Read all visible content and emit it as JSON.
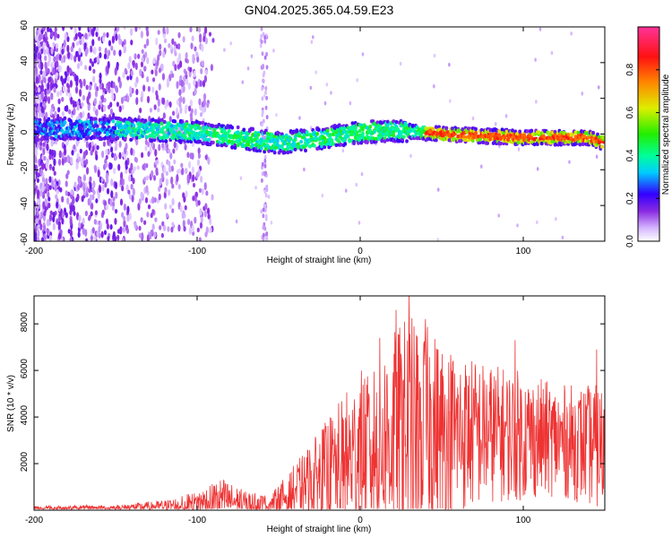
{
  "title": "GN04.2025.365.04.59.E23",
  "chart_data": [
    {
      "type": "heatmap",
      "name": "spectrogram",
      "xlabel": "Height of straight line (km)",
      "ylabel": "Frequency (Hz)",
      "xlim": [
        -200,
        150
      ],
      "ylim": [
        -60,
        60
      ],
      "xticks": [
        -200,
        -100,
        0,
        100
      ],
      "xtick_labels": [
        "-200",
        "-100",
        "0",
        "100"
      ],
      "yticks": [
        -60,
        -40,
        -20,
        0,
        20,
        40,
        60
      ],
      "ytick_labels": [
        "-60",
        "-40",
        "-20",
        "0",
        "20",
        "40",
        "60"
      ],
      "colorbar": {
        "label": "Normalized spectral amplitude",
        "range": [
          0,
          1
        ],
        "ticks": [
          0.0,
          0.2,
          0.4,
          0.6,
          0.8
        ],
        "tick_labels": [
          "0.0",
          "0.2",
          "0.4",
          "0.6",
          "0.8"
        ]
      },
      "ridge_center_hz": [
        {
          "x": -200,
          "f": 3
        },
        {
          "x": -150,
          "f": 3
        },
        {
          "x": -100,
          "f": 1
        },
        {
          "x": -50,
          "f": -5
        },
        {
          "x": -20,
          "f": -2
        },
        {
          "x": 0,
          "f": 1
        },
        {
          "x": 20,
          "f": 2
        },
        {
          "x": 50,
          "f": 0
        },
        {
          "x": 100,
          "f": -2
        },
        {
          "x": 140,
          "f": -2
        },
        {
          "x": 150,
          "f": -5
        }
      ]
    },
    {
      "type": "line",
      "name": "snr",
      "xlabel": "Height of straight line (km)",
      "ylabel": "SNR (10 * v/v)",
      "xlim": [
        -200,
        150
      ],
      "ylim": [
        0,
        9200
      ],
      "xticks": [
        -200,
        -100,
        0,
        100
      ],
      "xtick_labels": [
        "-200",
        "-100",
        "0",
        "100"
      ],
      "yticks": [
        2000,
        4000,
        6000,
        8000
      ],
      "ytick_labels": [
        "2000",
        "4000",
        "6000",
        "8000"
      ],
      "color": "#ee3333",
      "envelope": [
        {
          "x": -200,
          "base": 80,
          "amp": 120
        },
        {
          "x": -150,
          "base": 100,
          "amp": 120
        },
        {
          "x": -120,
          "base": 180,
          "amp": 250
        },
        {
          "x": -100,
          "base": 300,
          "amp": 500
        },
        {
          "x": -85,
          "base": 500,
          "amp": 900
        },
        {
          "x": -70,
          "base": 300,
          "amp": 500
        },
        {
          "x": -55,
          "base": 250,
          "amp": 400
        },
        {
          "x": -40,
          "base": 800,
          "amp": 1200
        },
        {
          "x": -25,
          "base": 1400,
          "amp": 2000
        },
        {
          "x": -10,
          "base": 2000,
          "amp": 3000
        },
        {
          "x": 0,
          "base": 2500,
          "amp": 3500
        },
        {
          "x": 15,
          "base": 3000,
          "amp": 4200
        },
        {
          "x": 30,
          "base": 3500,
          "amp": 5000
        },
        {
          "x": 45,
          "base": 3500,
          "amp": 4200
        },
        {
          "x": 60,
          "base": 3300,
          "amp": 3500
        },
        {
          "x": 80,
          "base": 3300,
          "amp": 3000
        },
        {
          "x": 100,
          "base": 3200,
          "amp": 2800
        },
        {
          "x": 120,
          "base": 3000,
          "amp": 2400
        },
        {
          "x": 140,
          "base": 2800,
          "amp": 2600
        },
        {
          "x": 150,
          "base": 2600,
          "amp": 2800
        }
      ],
      "peaks": [
        {
          "x": 30,
          "y": 9200
        },
        {
          "x": 22,
          "y": 8600
        },
        {
          "x": 40,
          "y": 8200
        },
        {
          "x": 95,
          "y": 7300
        },
        {
          "x": 145,
          "y": 6900
        },
        {
          "x": 12,
          "y": 7400
        }
      ]
    }
  ]
}
